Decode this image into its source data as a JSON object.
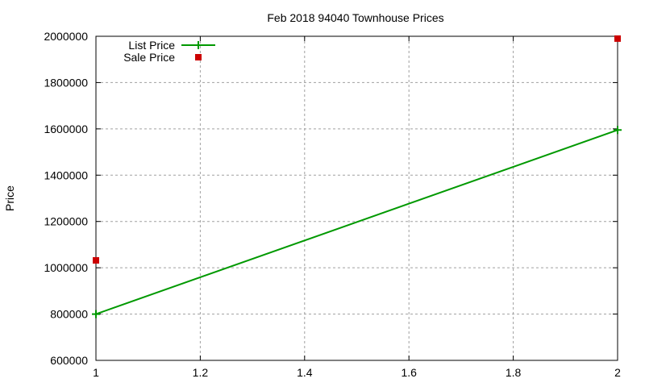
{
  "chart_data": {
    "type": "line",
    "title": "Feb 2018 94040 Townhouse Prices",
    "xlabel": "",
    "ylabel": "Price",
    "xlim": [
      1,
      2
    ],
    "ylim": [
      600000,
      2000000
    ],
    "grid": true,
    "legend_position": "top-left",
    "x_ticks": [
      "1",
      "1.2",
      "1.4",
      "1.6",
      "1.8",
      "2"
    ],
    "y_ticks": [
      "600000",
      "800000",
      "1000000",
      "1200000",
      "1400000",
      "1600000",
      "1800000",
      "2000000"
    ],
    "series": [
      {
        "name": "List Price",
        "style": "linespoints",
        "color": "#009900",
        "x": [
          1,
          2
        ],
        "values": [
          800000,
          1595000
        ]
      },
      {
        "name": "Sale Price",
        "style": "points",
        "color": "#cc0000",
        "x": [
          1,
          2
        ],
        "values": [
          1032000,
          1990000
        ]
      }
    ]
  }
}
